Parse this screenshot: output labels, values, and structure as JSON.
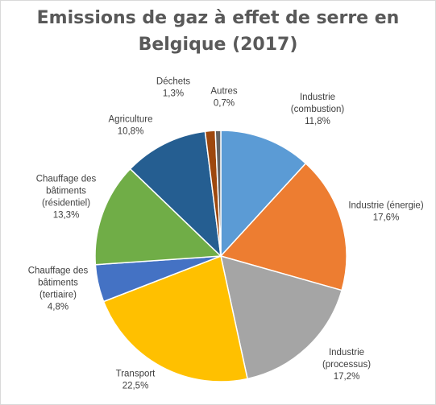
{
  "chart_data": {
    "type": "pie",
    "title": [
      "Emissions de gaz à effet de serre en",
      "Belgique (2017)"
    ],
    "slices": [
      {
        "label": [
          "Industrie",
          "(combustion)"
        ],
        "value_label": "11,8%",
        "value": 11.8,
        "color": "#5b9bd5"
      },
      {
        "label": [
          "Industrie (énergie)"
        ],
        "value_label": "17,6%",
        "value": 17.6,
        "color": "#ed7d31"
      },
      {
        "label": [
          "Industrie",
          "(processus)"
        ],
        "value_label": "17,2%",
        "value": 17.2,
        "color": "#a5a5a5"
      },
      {
        "label": [
          "Transport"
        ],
        "value_label": "22,5%",
        "value": 22.5,
        "color": "#ffc000"
      },
      {
        "label": [
          "Chauffage des",
          "bâtiments",
          "(tertiaire)"
        ],
        "value_label": "4,8%",
        "value": 4.8,
        "color": "#4472c4"
      },
      {
        "label": [
          "Chauffage des",
          "bâtiments",
          "(résidentiel)"
        ],
        "value_label": "13,3%",
        "value": 13.3,
        "color": "#70ad47"
      },
      {
        "label": [
          "Agriculture"
        ],
        "value_label": "10,8%",
        "value": 10.8,
        "color": "#255e91"
      },
      {
        "label": [
          "Déchets"
        ],
        "value_label": "1,3%",
        "value": 1.3,
        "color": "#9e480e"
      },
      {
        "label": [
          "Autres"
        ],
        "value_label": "0,7%",
        "value": 0.7,
        "color": "#636363"
      }
    ],
    "start": "12 o'clock",
    "direction": "clockwise",
    "legend": "none"
  }
}
